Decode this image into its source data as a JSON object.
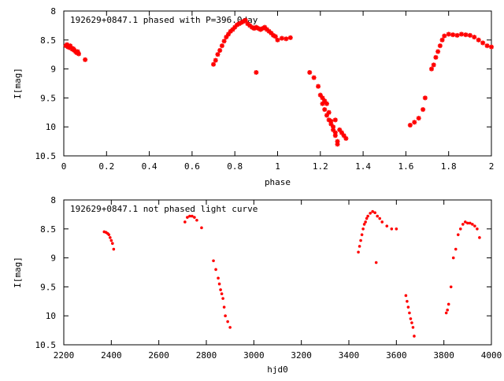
{
  "chart_data": [
    {
      "type": "scatter",
      "title": "192629+0847.1 phased with P=396.0day",
      "xlabel": "phase",
      "ylabel": "I[mag]",
      "xlim": [
        0,
        2
      ],
      "ylim": [
        10.5,
        8
      ],
      "y_inverted": true,
      "grid": false,
      "x_ticks": [
        0,
        0.2,
        0.4,
        0.6,
        0.8,
        1,
        1.2,
        1.4,
        1.6,
        1.8,
        2
      ],
      "x_tick_labels": [
        "0",
        "0.2",
        "0.4",
        "0.6",
        "0.8",
        "1",
        "1.2",
        "1.4",
        "1.6",
        "1.8",
        "2"
      ],
      "y_ticks": [
        8,
        8.5,
        9,
        9.5,
        10,
        10.5
      ],
      "y_tick_labels": [
        "8",
        "8.5",
        "9",
        "9.5",
        "10",
        "10.5"
      ],
      "marker_color": "#ff0000",
      "series": [
        {
          "x": [
            0.01,
            0.015,
            0.02,
            0.025,
            0.03,
            0.035,
            0.04,
            0.045,
            0.05,
            0.055,
            0.06,
            0.065,
            0.07,
            0.1,
            0.7,
            0.71,
            0.72,
            0.73,
            0.74,
            0.75,
            0.76,
            0.77,
            0.78,
            0.79,
            0.8,
            0.81,
            0.82,
            0.83,
            0.84,
            0.85,
            0.86,
            0.87,
            0.88,
            0.89,
            0.9,
            0.91,
            0.92,
            0.93,
            0.94,
            0.95,
            0.96,
            0.97,
            0.98,
            0.99,
            1.0,
            1.02,
            1.04,
            1.06,
            0.9,
            1.15,
            1.17,
            1.19,
            1.2,
            1.21,
            1.22,
            1.23,
            1.24,
            1.25,
            1.26,
            1.27,
            1.28,
            1.21,
            1.22,
            1.23,
            1.24,
            1.25,
            1.26,
            1.27,
            1.28,
            1.29,
            1.3,
            1.31,
            1.32,
            1.27,
            1.62,
            1.64,
            1.66,
            1.68,
            1.69,
            1.72,
            1.73,
            1.74,
            1.75,
            1.76,
            1.77,
            1.78,
            1.8,
            1.82,
            1.84,
            1.86,
            1.88,
            1.9,
            1.92,
            1.94,
            1.96,
            1.98,
            2.0
          ],
          "y": [
            8.6,
            8.58,
            8.62,
            8.63,
            8.6,
            8.64,
            8.66,
            8.65,
            8.68,
            8.7,
            8.72,
            8.7,
            8.74,
            8.84,
            8.92,
            8.85,
            8.75,
            8.68,
            8.6,
            8.52,
            8.45,
            8.4,
            8.35,
            8.32,
            8.28,
            8.24,
            8.22,
            8.2,
            8.18,
            8.16,
            8.22,
            8.25,
            8.28,
            8.3,
            8.28,
            8.3,
            8.32,
            8.3,
            8.28,
            8.32,
            8.35,
            8.38,
            8.42,
            8.44,
            8.5,
            8.47,
            8.48,
            8.46,
            9.06,
            9.06,
            9.15,
            9.3,
            9.45,
            9.6,
            9.7,
            9.8,
            9.88,
            9.95,
            10.05,
            10.15,
            10.25,
            9.5,
            9.55,
            9.6,
            9.75,
            9.9,
            10.0,
            10.1,
            10.3,
            10.05,
            10.1,
            10.15,
            10.2,
            9.88,
            9.97,
            9.92,
            9.85,
            9.7,
            9.5,
            9.0,
            8.93,
            8.8,
            8.7,
            8.6,
            8.5,
            8.43,
            8.4,
            8.41,
            8.42,
            8.4,
            8.41,
            8.42,
            8.45,
            8.5,
            8.55,
            8.6,
            8.62
          ]
        }
      ]
    },
    {
      "type": "scatter",
      "title": "192629+0847.1 not phased light curve",
      "xlabel": "hjd0",
      "ylabel": "I[mag]",
      "xlim": [
        2200,
        4000
      ],
      "ylim": [
        10.5,
        8
      ],
      "y_inverted": true,
      "grid": false,
      "x_ticks": [
        2200,
        2400,
        2600,
        2800,
        3000,
        3200,
        3400,
        3600,
        3800,
        4000
      ],
      "x_tick_labels": [
        "2200",
        "2400",
        "2600",
        "2800",
        "3000",
        "3200",
        "3400",
        "3600",
        "3800",
        "4000"
      ],
      "y_ticks": [
        8,
        8.5,
        9,
        9.5,
        10,
        10.5
      ],
      "y_tick_labels": [
        "8",
        "8.5",
        "9",
        "9.5",
        "10",
        "10.5"
      ],
      "marker_color": "#ff0000",
      "series": [
        {
          "x": [
            2370,
            2378,
            2385,
            2390,
            2395,
            2400,
            2405,
            2410,
            2710,
            2720,
            2730,
            2740,
            2750,
            2760,
            2780,
            2830,
            2840,
            2850,
            2855,
            2860,
            2865,
            2870,
            2875,
            2880,
            2890,
            2900,
            3440,
            3445,
            3450,
            3455,
            3460,
            3465,
            3470,
            3475,
            3480,
            3490,
            3500,
            3510,
            3520,
            3530,
            3540,
            3560,
            3580,
            3600,
            3515,
            3640,
            3645,
            3650,
            3655,
            3660,
            3665,
            3670,
            3675,
            3810,
            3815,
            3820,
            3830,
            3840,
            3850,
            3860,
            3870,
            3880,
            3890,
            3900,
            3910,
            3920,
            3930,
            3940,
            3950
          ],
          "y": [
            8.55,
            8.56,
            8.58,
            8.6,
            8.65,
            8.7,
            8.75,
            8.85,
            8.38,
            8.3,
            8.28,
            8.28,
            8.3,
            8.35,
            8.48,
            9.05,
            9.2,
            9.35,
            9.45,
            9.55,
            9.62,
            9.7,
            9.85,
            10.0,
            10.1,
            10.2,
            8.9,
            8.8,
            8.7,
            8.6,
            8.5,
            8.42,
            8.38,
            8.32,
            8.28,
            8.23,
            8.2,
            8.22,
            8.28,
            8.32,
            8.38,
            8.45,
            8.5,
            8.5,
            9.08,
            9.65,
            9.75,
            9.85,
            9.95,
            10.05,
            10.12,
            10.2,
            10.35,
            9.95,
            9.9,
            9.8,
            9.5,
            9.0,
            8.85,
            8.6,
            8.5,
            8.42,
            8.38,
            8.4,
            8.4,
            8.42,
            8.45,
            8.5,
            8.65
          ]
        }
      ]
    }
  ]
}
